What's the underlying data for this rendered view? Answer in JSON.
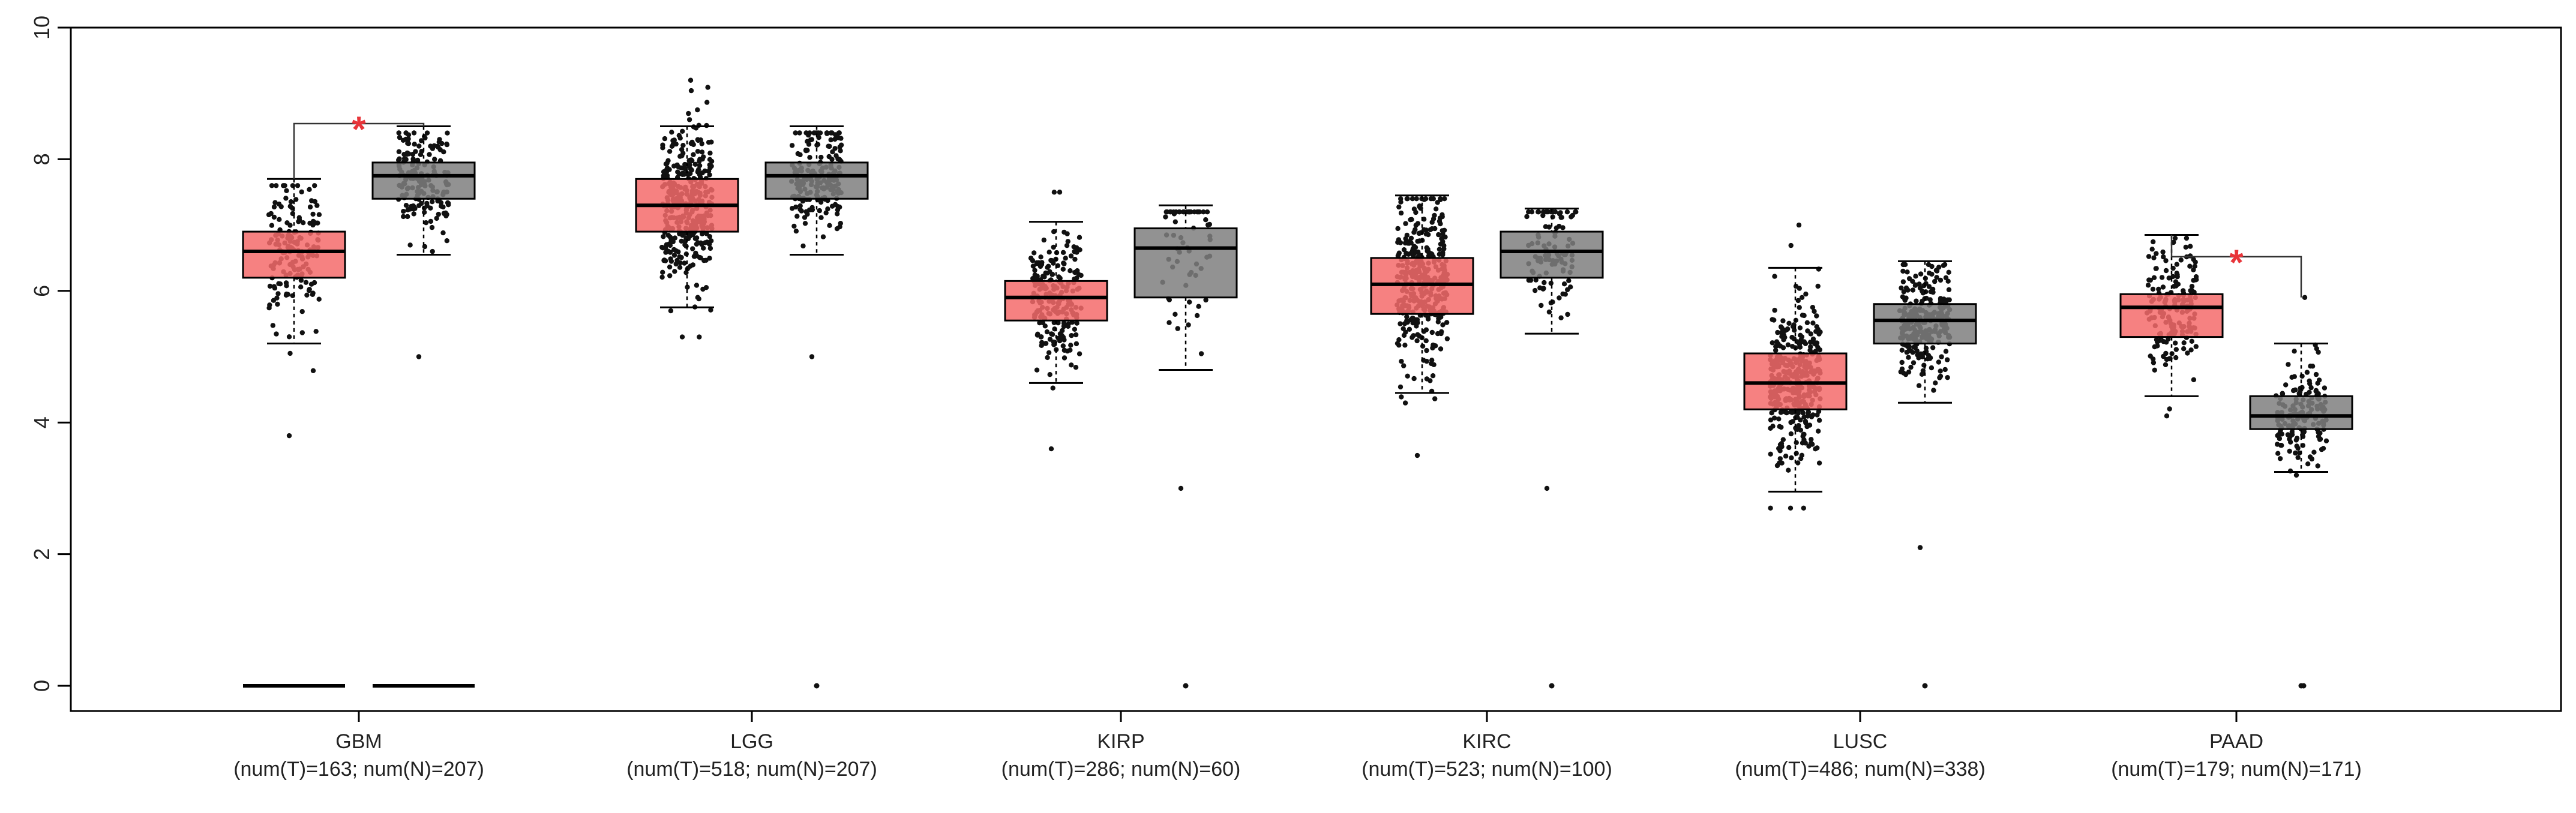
{
  "chart_data": {
    "type": "box",
    "title": "",
    "xlabel": "",
    "ylabel": "",
    "ylim": [
      0,
      10
    ],
    "yticks": [
      "0",
      "2",
      "4",
      "6",
      "8",
      "10"
    ],
    "grid": false,
    "colors": {
      "tumor": "#f46b6b",
      "normal": "#7f7f7f",
      "significance": "#e8353a"
    },
    "categories": [
      {
        "name": "GBM",
        "sub": "(num(T)=163; num(N)=207)",
        "tumor": {
          "q1": 6.2,
          "median": 6.6,
          "q3": 6.9,
          "wlo": 5.2,
          "whi": 7.7,
          "jmin": 3.8,
          "jmax": 7.6,
          "n": 160
        },
        "normal": {
          "q1": 7.4,
          "median": 7.75,
          "q3": 7.95,
          "wlo": 6.55,
          "whi": 8.5,
          "jmin": 5.0,
          "jmax": 8.4,
          "n": 180
        },
        "zeros": true,
        "star": "*",
        "bracket": [
          8.45,
          7.95
        ]
      },
      {
        "name": "LGG",
        "sub": "(num(T)=518; num(N)=207)",
        "tumor": {
          "q1": 6.9,
          "median": 7.3,
          "q3": 7.7,
          "wlo": 5.75,
          "whi": 8.5,
          "jmin": 5.3,
          "jmax": 9.2,
          "n": 380
        },
        "normal": {
          "q1": 7.4,
          "median": 7.75,
          "q3": 7.95,
          "wlo": 6.55,
          "whi": 8.5,
          "jmin": 5.0,
          "jmax": 8.4,
          "n": 180
        },
        "zeros": false
      },
      {
        "name": "KIRP",
        "sub": "(num(T)=286; num(N)=60)",
        "tumor": {
          "q1": 5.55,
          "median": 5.9,
          "q3": 6.15,
          "wlo": 4.6,
          "whi": 7.05,
          "jmin": 3.6,
          "jmax": 7.5,
          "n": 220
        },
        "normal": {
          "q1": 5.9,
          "median": 6.65,
          "q3": 6.95,
          "wlo": 4.8,
          "whi": 7.3,
          "jmin": 3.0,
          "jmax": 7.2,
          "n": 60
        },
        "zeros": false
      },
      {
        "name": "KIRC",
        "sub": "(num(T)=523; num(N)=100)",
        "tumor": {
          "q1": 5.65,
          "median": 6.1,
          "q3": 6.5,
          "wlo": 4.45,
          "whi": 7.45,
          "jmin": 3.5,
          "jmax": 7.4,
          "n": 380
        },
        "normal": {
          "q1": 6.2,
          "median": 6.6,
          "q3": 6.9,
          "wlo": 5.35,
          "whi": 7.25,
          "jmin": 3.0,
          "jmax": 7.2,
          "n": 100
        },
        "zeros": false
      },
      {
        "name": "LUSC",
        "sub": "(num(T)=486; num(N)=338)",
        "tumor": {
          "q1": 4.2,
          "median": 4.6,
          "q3": 5.05,
          "wlo": 2.95,
          "whi": 6.35,
          "jmin": 2.7,
          "jmax": 7.0,
          "n": 380
        },
        "normal": {
          "q1": 5.2,
          "median": 5.55,
          "q3": 5.8,
          "wlo": 4.3,
          "whi": 6.45,
          "jmin": 2.1,
          "jmax": 6.4,
          "n": 260
        },
        "zeros": false
      },
      {
        "name": "PAAD",
        "sub": "(num(T)=179; num(N)=171)",
        "tumor": {
          "q1": 5.3,
          "median": 5.75,
          "q3": 5.95,
          "wlo": 4.4,
          "whi": 6.85,
          "jmin": 4.1,
          "jmax": 6.8,
          "n": 170
        },
        "normal": {
          "q1": 3.9,
          "median": 4.1,
          "q3": 4.4,
          "wlo": 3.25,
          "whi": 5.2,
          "jmin": 3.2,
          "jmax": 5.9,
          "n": 160
        },
        "zeros": false,
        "star": "*",
        "bracket": [
          6.3,
          5.95
        ]
      }
    ]
  }
}
